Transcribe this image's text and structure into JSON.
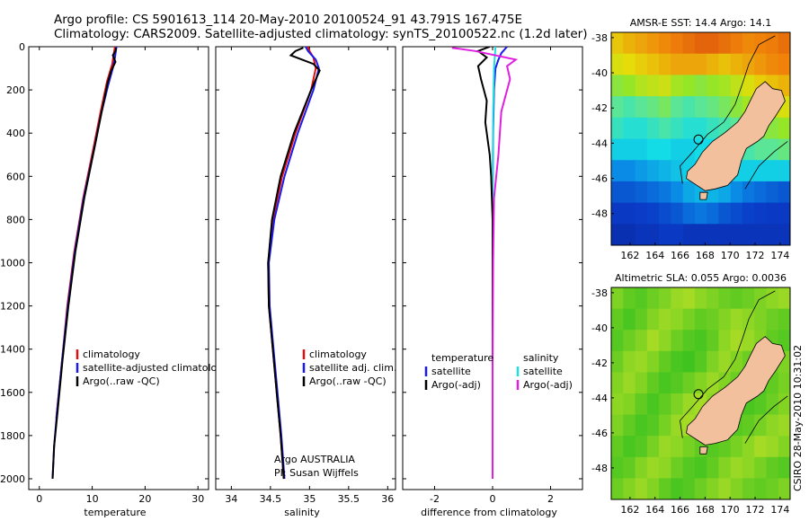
{
  "header": {
    "line1": "Argo profile: CS 5901613_114 20-May-2010 20100524_91 43.791S 167.475E",
    "line2": "Climatology: CARS2009. Satellite-adjusted climatology: synTS_20100522.nc (1.2d later)"
  },
  "stamp": "CSIRO 28-May-2010 10:31:02",
  "colors": {
    "climatology": "#e01010",
    "satellite": "#1a1aee",
    "argo": "#000000",
    "cyan": "#22dddd",
    "magenta": "#e020e0",
    "land": "#f2c09c"
  },
  "chart_data": [
    {
      "type": "line",
      "xlabel": "temperature",
      "ylabel": "",
      "xlim": [
        -2,
        32
      ],
      "ylim": [
        2050,
        0
      ],
      "y_reversed": true,
      "xticks": [
        0,
        10,
        20,
        30
      ],
      "yticks": [
        0,
        200,
        400,
        600,
        800,
        1000,
        1200,
        1400,
        1600,
        1800,
        2000
      ],
      "legend": {
        "placement": "bottom-right",
        "entries": [
          "climatology",
          "satellite-adjusted climatology",
          "Argo(..raw -QC)"
        ]
      },
      "series": [
        {
          "name": "climatology",
          "color": "#e01010",
          "points": [
            [
              14.3,
              0
            ],
            [
              14.1,
              30
            ],
            [
              13.8,
              80
            ],
            [
              12.8,
              160
            ],
            [
              11.6,
              300
            ],
            [
              10.3,
              460
            ],
            [
              8.3,
              700
            ],
            [
              6.6,
              950
            ],
            [
              5.3,
              1200
            ],
            [
              4.3,
              1450
            ],
            [
              3.2,
              1720
            ]
          ]
        },
        {
          "name": "satellite-adjusted climatology",
          "color": "#1a1aee",
          "points": [
            [
              14.6,
              0
            ],
            [
              14.3,
              50
            ],
            [
              13.9,
              100
            ],
            [
              13.0,
              180
            ],
            [
              11.7,
              310
            ],
            [
              10.4,
              470
            ],
            [
              8.4,
              700
            ],
            [
              6.7,
              950
            ],
            [
              5.4,
              1200
            ],
            [
              4.3,
              1450
            ],
            [
              3.3,
              1700
            ],
            [
              2.8,
              1850
            ],
            [
              2.5,
              2000
            ]
          ]
        },
        {
          "name": "Argo(..raw -QC)",
          "color": "#000000",
          "points": [
            [
              14.5,
              5
            ],
            [
              14.4,
              20
            ],
            [
              13.9,
              40
            ],
            [
              14.4,
              70
            ],
            [
              13.6,
              110
            ],
            [
              12.9,
              170
            ],
            [
              11.8,
              300
            ],
            [
              10.5,
              460
            ],
            [
              8.5,
              700
            ],
            [
              6.8,
              950
            ],
            [
              5.5,
              1200
            ],
            [
              4.4,
              1450
            ],
            [
              3.4,
              1700
            ],
            [
              2.8,
              1850
            ],
            [
              2.5,
              2000
            ]
          ]
        }
      ]
    },
    {
      "type": "line",
      "xlabel": "salinity",
      "ylabel": "",
      "xlim": [
        33.8,
        36.1
      ],
      "ylim": [
        2050,
        0
      ],
      "y_reversed": true,
      "xticks": [
        34,
        34.5,
        35,
        35.5,
        36
      ],
      "xtick_labels": [
        "34",
        "34.5",
        "35",
        "35.5",
        "36"
      ],
      "legend": {
        "placement": "bottom-right",
        "entries": [
          "climatology",
          "satellite adj. clim.",
          "Argo(..raw -QC)"
        ]
      },
      "annotation": [
        "Argo AUSTRALIA",
        "PI: Susan Wijffels"
      ],
      "series": [
        {
          "name": "climatology",
          "color": "#e01010",
          "points": [
            [
              34.98,
              0
            ],
            [
              35.0,
              20
            ],
            [
              35.05,
              50
            ],
            [
              35.08,
              100
            ],
            [
              35.02,
              200
            ],
            [
              34.82,
              400
            ],
            [
              34.65,
              600
            ],
            [
              34.53,
              800
            ],
            [
              34.47,
              1000
            ],
            [
              34.48,
              1200
            ],
            [
              34.53,
              1400
            ],
            [
              34.58,
              1600
            ],
            [
              34.63,
              1800
            ],
            [
              34.67,
              2000
            ]
          ]
        },
        {
          "name": "satellite adj. clim.",
          "color": "#1a1aee",
          "points": [
            [
              34.95,
              0
            ],
            [
              34.98,
              20
            ],
            [
              35.08,
              60
            ],
            [
              35.12,
              100
            ],
            [
              35.05,
              200
            ],
            [
              34.85,
              400
            ],
            [
              34.68,
              600
            ],
            [
              34.55,
              800
            ],
            [
              34.48,
              1000
            ],
            [
              34.49,
              1200
            ],
            [
              34.54,
              1400
            ],
            [
              34.59,
              1600
            ],
            [
              34.64,
              1800
            ],
            [
              34.68,
              2000
            ]
          ]
        },
        {
          "name": "Argo(..raw -QC)",
          "color": "#000000",
          "points": [
            [
              34.92,
              5
            ],
            [
              34.82,
              20
            ],
            [
              34.76,
              40
            ],
            [
              35.05,
              80
            ],
            [
              35.13,
              110
            ],
            [
              35.02,
              200
            ],
            [
              34.8,
              400
            ],
            [
              34.63,
              600
            ],
            [
              34.52,
              800
            ],
            [
              34.47,
              1000
            ],
            [
              34.48,
              1200
            ],
            [
              34.53,
              1400
            ],
            [
              34.58,
              1600
            ],
            [
              34.63,
              1800
            ],
            [
              34.67,
              2000
            ]
          ]
        }
      ]
    },
    {
      "type": "line",
      "xlabel": "difference from climatology",
      "ylabel": "",
      "xlim": [
        -3.1,
        3.1
      ],
      "ylim": [
        2050,
        0
      ],
      "y_reversed": true,
      "xticks": [
        -2,
        0,
        2
      ],
      "legend": {
        "placement": "bottom",
        "column_headers": [
          "temperature",
          "salinity"
        ],
        "entries": [
          "satellite",
          "Argo(-adj)",
          "satellite",
          "Argo(-adj)"
        ]
      },
      "series": [
        {
          "name": "temperature satellite",
          "color": "#1a1aee",
          "points": [
            [
              0.5,
              0
            ],
            [
              0.3,
              30
            ],
            [
              0.2,
              60
            ],
            [
              0.1,
              100
            ],
            [
              0.05,
              200
            ],
            [
              0.02,
              400
            ],
            [
              0.0,
              700
            ],
            [
              0.0,
              1000
            ],
            [
              0.0,
              1500
            ],
            [
              0.0,
              1700
            ]
          ]
        },
        {
          "name": "temperature Argo(-adj)",
          "color": "#000000",
          "points": [
            [
              -0.1,
              0
            ],
            [
              -0.5,
              20
            ],
            [
              -0.2,
              50
            ],
            [
              -0.5,
              90
            ],
            [
              -0.4,
              150
            ],
            [
              -0.2,
              250
            ],
            [
              -0.25,
              350
            ],
            [
              -0.1,
              500
            ],
            [
              -0.05,
              600
            ],
            [
              0.0,
              800
            ],
            [
              0.0,
              1000
            ],
            [
              0.0,
              1400
            ],
            [
              0.0,
              1700
            ]
          ]
        },
        {
          "name": "salinity satellite",
          "color": "#22dddd",
          "points": [
            [
              0.1,
              0
            ],
            [
              0.05,
              100
            ],
            [
              0.02,
              300
            ],
            [
              0.0,
              600
            ],
            [
              0.0,
              1000
            ],
            [
              0.0,
              1500
            ],
            [
              0.0,
              2000
            ]
          ]
        },
        {
          "name": "salinity Argo(-adj)",
          "color": "#e020e0",
          "points": [
            [
              -1.4,
              5
            ],
            [
              -0.6,
              20
            ],
            [
              0.8,
              60
            ],
            [
              0.5,
              90
            ],
            [
              0.6,
              150
            ],
            [
              0.3,
              300
            ],
            [
              0.2,
              500
            ],
            [
              0.05,
              700
            ],
            [
              0.02,
              1000
            ],
            [
              0.0,
              1500
            ],
            [
              0.0,
              2000
            ]
          ]
        }
      ]
    }
  ],
  "maps": [
    {
      "title": "AMSR-E SST: 14.4 Argo: 14.1",
      "xticks": [
        162,
        164,
        166,
        168,
        170,
        172,
        174
      ],
      "yticks": [
        -38,
        -40,
        -42,
        -44,
        -46,
        -48
      ],
      "lon_range": [
        160.5,
        174.8
      ],
      "lat_range": [
        -49.8,
        -37.7
      ],
      "argo_position": [
        167.475,
        -43.791
      ],
      "colormap": "sst",
      "field_rows": [
        [
          0.75,
          0.78,
          0.8,
          0.82,
          0.84,
          0.86,
          0.88,
          0.9,
          0.9,
          0.88,
          0.86,
          0.84,
          0.85,
          0.86,
          0.88
        ],
        [
          0.7,
          0.72,
          0.74,
          0.76,
          0.78,
          0.8,
          0.8,
          0.8,
          0.78,
          0.76,
          0.78,
          0.8,
          0.82,
          0.84,
          0.85
        ],
        [
          0.58,
          0.6,
          0.64,
          0.66,
          0.68,
          0.62,
          0.6,
          0.58,
          0.6,
          0.62,
          0.66,
          0.7,
          0.74,
          0.76,
          0.78
        ],
        [
          0.5,
          0.48,
          0.5,
          0.52,
          0.55,
          0.5,
          0.48,
          0.5,
          0.52,
          0.55,
          0.58,
          0.62,
          0.66,
          0.68,
          0.7
        ],
        [
          0.46,
          0.44,
          0.44,
          0.46,
          0.48,
          0.46,
          0.44,
          0.44,
          0.46,
          0.48,
          0.5,
          0.54,
          0.56,
          0.58,
          0.6
        ],
        [
          0.4,
          0.4,
          0.4,
          0.42,
          0.42,
          0.4,
          0.4,
          0.42,
          0.42,
          0.44,
          0.46,
          0.48,
          0.5,
          0.5,
          0.52
        ],
        [
          0.3,
          0.3,
          0.32,
          0.34,
          0.36,
          0.38,
          0.4,
          0.4,
          0.4,
          0.4,
          0.4,
          0.4,
          0.4,
          0.4,
          0.4
        ],
        [
          0.2,
          0.2,
          0.22,
          0.24,
          0.26,
          0.3,
          0.34,
          0.36,
          0.36,
          0.34,
          0.3,
          0.26,
          0.24,
          0.22,
          0.2
        ],
        [
          0.14,
          0.14,
          0.15,
          0.16,
          0.18,
          0.2,
          0.24,
          0.26,
          0.24,
          0.2,
          0.18,
          0.16,
          0.15,
          0.14,
          0.14
        ],
        [
          0.1,
          0.1,
          0.12,
          0.12,
          0.14,
          0.14,
          0.12,
          0.12,
          0.12,
          0.12,
          0.12,
          0.12,
          0.12,
          0.12,
          0.12
        ]
      ]
    },
    {
      "title": "Altimetric SLA: 0.055 Argo: 0.0036",
      "xticks": [
        162,
        164,
        166,
        168,
        170,
        172,
        174
      ],
      "yticks": [
        -38,
        -40,
        -42,
        -44,
        -46,
        -48
      ],
      "lon_range": [
        160.5,
        174.8
      ],
      "lat_range": [
        -49.8,
        -37.7
      ],
      "argo_position": [
        167.475,
        -43.791
      ],
      "colormap": "sla",
      "field_rows": [
        [
          0.55,
          0.5,
          0.48,
          0.52,
          0.55,
          0.6,
          0.62,
          0.58,
          0.55,
          0.52,
          0.5,
          0.52,
          0.55,
          0.58,
          0.6
        ],
        [
          0.5,
          0.46,
          0.5,
          0.56,
          0.6,
          0.58,
          0.54,
          0.5,
          0.52,
          0.56,
          0.6,
          0.58,
          0.55,
          0.52,
          0.5
        ],
        [
          0.48,
          0.52,
          0.56,
          0.62,
          0.58,
          0.52,
          0.48,
          0.46,
          0.5,
          0.58,
          0.62,
          0.6,
          0.56,
          0.5,
          0.48
        ],
        [
          0.52,
          0.58,
          0.6,
          0.56,
          0.5,
          0.46,
          0.44,
          0.48,
          0.55,
          0.6,
          0.56,
          0.52,
          0.5,
          0.52,
          0.55
        ],
        [
          0.56,
          0.6,
          0.56,
          0.5,
          0.46,
          0.48,
          0.52,
          0.56,
          0.6,
          0.56,
          0.52,
          0.48,
          0.46,
          0.5,
          0.54
        ],
        [
          0.58,
          0.56,
          0.5,
          0.46,
          0.5,
          0.55,
          0.6,
          0.62,
          0.58,
          0.52,
          0.48,
          0.46,
          0.48,
          0.52,
          0.56
        ],
        [
          0.55,
          0.5,
          0.46,
          0.48,
          0.54,
          0.6,
          0.62,
          0.58,
          0.54,
          0.5,
          0.48,
          0.5,
          0.54,
          0.58,
          0.6
        ],
        [
          0.5,
          0.46,
          0.48,
          0.54,
          0.6,
          0.58,
          0.54,
          0.5,
          0.48,
          0.5,
          0.54,
          0.58,
          0.62,
          0.6,
          0.56
        ],
        [
          0.48,
          0.5,
          0.56,
          0.6,
          0.58,
          0.52,
          0.48,
          0.46,
          0.5,
          0.56,
          0.6,
          0.58,
          0.54,
          0.5,
          0.48
        ],
        [
          0.52,
          0.56,
          0.6,
          0.56,
          0.5,
          0.46,
          0.48,
          0.52,
          0.56,
          0.6,
          0.56,
          0.52,
          0.5,
          0.52,
          0.55
        ]
      ]
    }
  ]
}
